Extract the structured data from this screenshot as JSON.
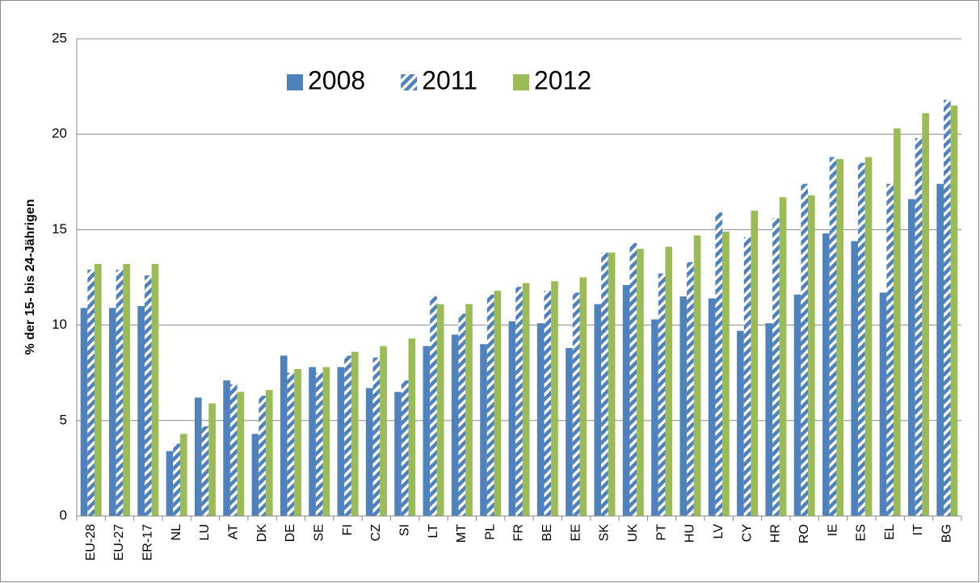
{
  "chart_data": {
    "type": "bar",
    "y_label": "% der 15- bis 24-Jährigen",
    "categories": [
      "EU-28",
      "EU-27",
      "ER-17",
      "NL",
      "LU",
      "AT",
      "DK",
      "DE",
      "SE",
      "FI",
      "CZ",
      "SI",
      "LT",
      "MT",
      "PL",
      "FR",
      "BE",
      "EE",
      "SK",
      "UK",
      "PT",
      "HU",
      "LV",
      "CY",
      "HR",
      "RO",
      "IE",
      "ES",
      "EL",
      "IT",
      "BG"
    ],
    "series": [
      {
        "name": "2008",
        "color": "#4f81bd",
        "values": [
          10.9,
          10.9,
          11.0,
          3.4,
          6.2,
          7.1,
          4.3,
          8.4,
          7.8,
          7.8,
          6.7,
          6.5,
          8.9,
          9.5,
          9.0,
          10.2,
          10.1,
          8.8,
          11.1,
          12.1,
          10.3,
          11.5,
          11.4,
          9.7,
          10.1,
          11.6,
          14.8,
          14.4,
          11.7,
          16.6,
          17.4
        ]
      },
      {
        "name": "2011",
        "color": "#4f81bd",
        "pattern": "diagonal",
        "values": [
          12.9,
          12.9,
          12.6,
          3.8,
          4.7,
          6.9,
          6.3,
          7.5,
          7.5,
          8.4,
          8.3,
          7.1,
          11.5,
          10.6,
          11.6,
          12.0,
          11.8,
          11.7,
          13.8,
          14.3,
          12.7,
          13.3,
          15.9,
          14.6,
          15.6,
          17.4,
          18.8,
          18.5,
          17.4,
          19.8,
          21.8
        ]
      },
      {
        "name": "2012",
        "color": "#9bbb59",
        "values": [
          13.2,
          13.2,
          13.2,
          4.3,
          5.9,
          6.5,
          6.6,
          7.7,
          7.8,
          8.6,
          8.9,
          9.3,
          11.1,
          11.1,
          11.8,
          12.2,
          12.3,
          12.5,
          13.8,
          14.0,
          14.1,
          14.7,
          14.9,
          16.0,
          16.7,
          16.8,
          18.7,
          18.8,
          20.3,
          21.1,
          21.5
        ]
      }
    ],
    "ylim": [
      0,
      25
    ],
    "yticks": [
      0,
      5,
      10,
      15,
      20,
      25
    ],
    "grid": true,
    "legend": "top"
  }
}
